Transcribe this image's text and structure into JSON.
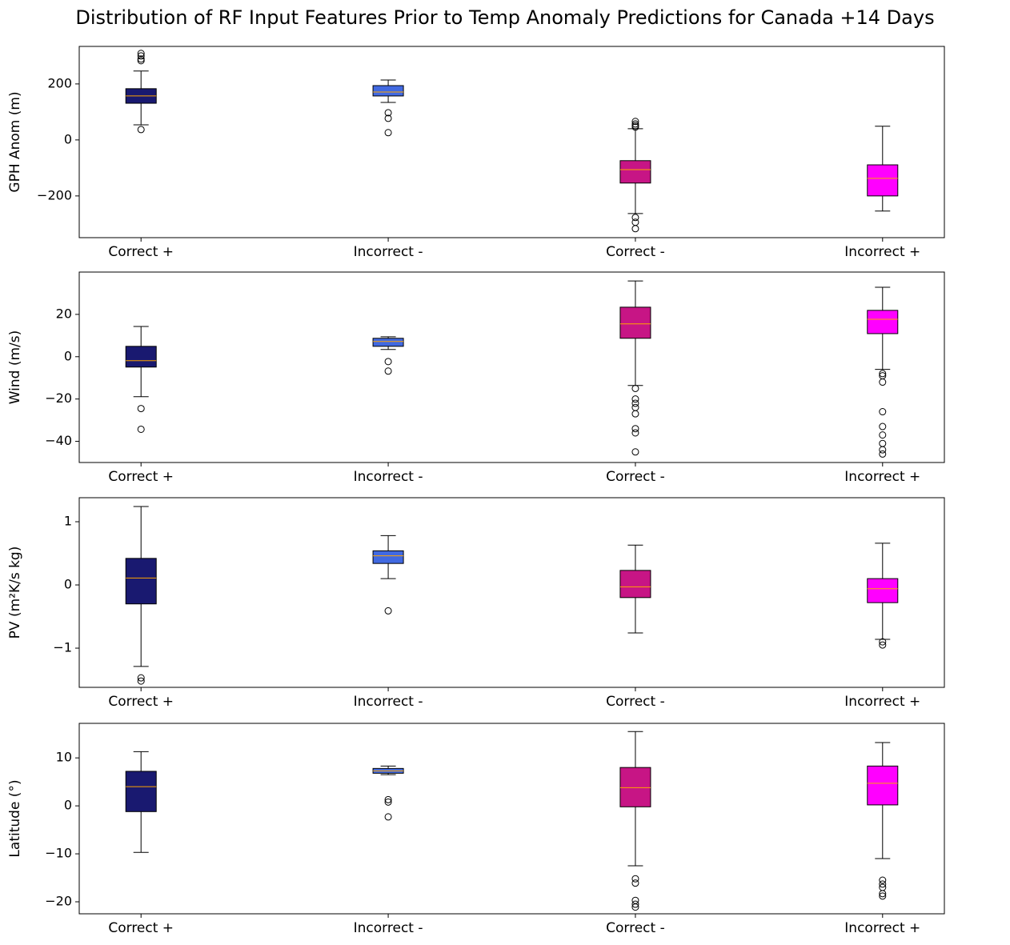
{
  "title": "Distribution of RF Input Features Prior to Temp Anomaly Predictions for Canada +14 Days",
  "chart_data": [
    {
      "type": "box",
      "ylabel": "GPH Anom (m)",
      "median_color": "#ffa500",
      "categories": [
        "Correct +",
        "Incorrect -",
        "Correct -",
        "Incorrect +"
      ],
      "ylim": [
        -349,
        334
      ],
      "yticks": [
        {
          "value": -200,
          "label": "−200"
        },
        0,
        200
      ],
      "boxes": [
        {
          "color": "#191970",
          "whisker_low": 54,
          "q1": 131,
          "median": 157,
          "q3": 183,
          "whisker_high": 246,
          "outliers": [
            37,
            283,
            289,
            300,
            309
          ]
        },
        {
          "color": "#4169e1",
          "whisker_low": 134,
          "q1": 157,
          "median": 171,
          "q3": 194,
          "whisker_high": 214,
          "outliers": [
            26,
            77,
            97
          ]
        },
        {
          "color": "#c71585",
          "whisker_low": -263,
          "q1": -154,
          "median": -106,
          "q3": -74,
          "whisker_high": 40,
          "outliers": [
            46,
            51,
            57,
            66,
            -277,
            -294,
            -317
          ]
        },
        {
          "color": "#ff00ff",
          "whisker_low": -254,
          "q1": -200,
          "median": -137,
          "q3": -89,
          "whisker_high": 49,
          "outliers": []
        }
      ]
    },
    {
      "type": "box",
      "ylabel": "Wind (m/s)",
      "median_color": "#ffa500",
      "categories": [
        "Correct +",
        "Incorrect -",
        "Correct -",
        "Incorrect +"
      ],
      "ylim": [
        -50,
        40
      ],
      "yticks": [
        {
          "value": -40,
          "label": "−40"
        },
        {
          "value": -20,
          "label": "−20"
        },
        0,
        20
      ],
      "boxes": [
        {
          "color": "#191970",
          "whisker_low": -18.9,
          "q1": -4.9,
          "median": -1.9,
          "q3": 4.9,
          "whisker_high": 14.3,
          "outliers": [
            -24.5,
            -34.3
          ]
        },
        {
          "color": "#4169e1",
          "whisker_low": 3.4,
          "q1": 4.9,
          "median": 7.2,
          "q3": 8.7,
          "whisker_high": 9.4,
          "outliers": [
            -2.3,
            -6.8
          ]
        },
        {
          "color": "#c71585",
          "whisker_low": -13.6,
          "q1": 8.7,
          "median": 15.5,
          "q3": 23.4,
          "whisker_high": 35.8,
          "outliers": [
            -15,
            -20,
            -22,
            -24,
            -27,
            -34,
            -36,
            -45
          ]
        },
        {
          "color": "#ff00ff",
          "whisker_low": -6,
          "q1": 10.9,
          "median": 17.7,
          "q3": 21.9,
          "whisker_high": 32.8,
          "outliers": [
            -8,
            -9,
            -12,
            -26,
            -33,
            -37,
            -41,
            -44,
            -46
          ]
        }
      ]
    },
    {
      "type": "box",
      "ylabel": "PV (m²K/s kg)",
      "median_color": "#ffa500",
      "categories": [
        "Correct +",
        "Incorrect -",
        "Correct -",
        "Incorrect +"
      ],
      "ylim": [
        -1.62,
        1.38
      ],
      "yticks": [
        {
          "value": -1,
          "label": "−1"
        },
        0,
        1
      ],
      "boxes": [
        {
          "color": "#191970",
          "whisker_low": -1.29,
          "q1": -0.3,
          "median": 0.11,
          "q3": 0.42,
          "whisker_high": 1.24,
          "outliers": [
            -1.47,
            -1.52
          ]
        },
        {
          "color": "#4169e1",
          "whisker_low": 0.1,
          "q1": 0.34,
          "median": 0.46,
          "q3": 0.54,
          "whisker_high": 0.78,
          "outliers": [
            -0.41
          ]
        },
        {
          "color": "#c71585",
          "whisker_low": -0.76,
          "q1": -0.2,
          "median": -0.03,
          "q3": 0.23,
          "whisker_high": 0.63,
          "outliers": []
        },
        {
          "color": "#ff00ff",
          "whisker_low": -0.86,
          "q1": -0.28,
          "median": -0.06,
          "q3": 0.1,
          "whisker_high": 0.66,
          "outliers": [
            -0.9,
            -0.95
          ]
        }
      ]
    },
    {
      "type": "box",
      "ylabel": "Latitude (°)",
      "median_color": "#ffa500",
      "categories": [
        "Correct +",
        "Incorrect -",
        "Correct -",
        "Incorrect +"
      ],
      "ylim": [
        -22.5,
        17.2
      ],
      "yticks": [
        {
          "value": -20,
          "label": "−20"
        },
        {
          "value": -10,
          "label": "−10"
        },
        0,
        10
      ],
      "boxes": [
        {
          "color": "#191970",
          "whisker_low": -9.7,
          "q1": -1.2,
          "median": 4,
          "q3": 7.2,
          "whisker_high": 11.3,
          "outliers": []
        },
        {
          "color": "#4169e1",
          "whisker_low": 6.5,
          "q1": 6.8,
          "median": 7.3,
          "q3": 7.8,
          "whisker_high": 8.3,
          "outliers": [
            1.3,
            0.8,
            -2.3
          ]
        },
        {
          "color": "#c71585",
          "whisker_low": -12.5,
          "q1": -0.2,
          "median": 3.8,
          "q3": 8,
          "whisker_high": 15.5,
          "outliers": [
            -15.2,
            -16.1,
            -19.7,
            -20.5,
            -21.1
          ]
        },
        {
          "color": "#ff00ff",
          "whisker_low": -11,
          "q1": 0.2,
          "median": 4.7,
          "q3": 8.3,
          "whisker_high": 13.2,
          "outliers": [
            -15.5,
            -16.3,
            -17,
            -18.3,
            -18.8
          ]
        }
      ]
    }
  ]
}
